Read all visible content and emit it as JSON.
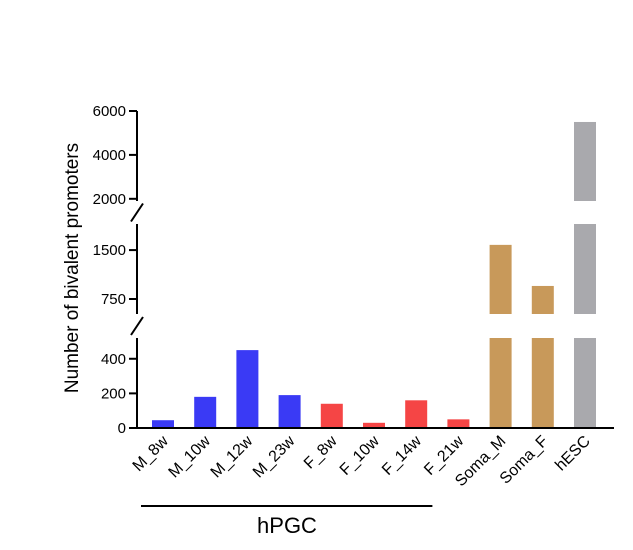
{
  "chart_data": {
    "type": "bar",
    "title": "",
    "xlabel": "",
    "ylabel": "Number of bivalent promoters",
    "axis_breaks": "broken y-axis with three segments",
    "segments": [
      {
        "name": "lower",
        "ylim": [
          0,
          520
        ],
        "ticks": [
          0,
          200,
          400
        ],
        "tick_labels": [
          "0",
          "200",
          "400"
        ]
      },
      {
        "name": "middle",
        "ylim": [
          520,
          1900
        ],
        "ticks": [
          750,
          1500
        ],
        "tick_labels": [
          "750",
          "1500"
        ]
      },
      {
        "name": "upper",
        "ylim": [
          1900,
          6000
        ],
        "ticks": [
          2000,
          4000,
          6000
        ],
        "tick_labels": [
          "2000",
          "4000",
          "6000"
        ]
      }
    ],
    "categories": [
      "M_8w",
      "M_10w",
      "M_12w",
      "M_23w",
      "F_8w",
      "F_10w",
      "F_14w",
      "F_21w",
      "Soma_M",
      "Soma_F",
      "hESC"
    ],
    "values": [
      45,
      180,
      450,
      190,
      140,
      30,
      160,
      50,
      1580,
      950,
      5500
    ],
    "colors": [
      "#3a3af5",
      "#3a3af5",
      "#3a3af5",
      "#3a3af5",
      "#f54545",
      "#f54545",
      "#f54545",
      "#f54545",
      "#c8995a",
      "#c8995a",
      "#a9a9ad"
    ],
    "group": {
      "label": "hPGC",
      "from": "M_8w",
      "to": "F_21w"
    },
    "grid": false,
    "legend": "none"
  }
}
